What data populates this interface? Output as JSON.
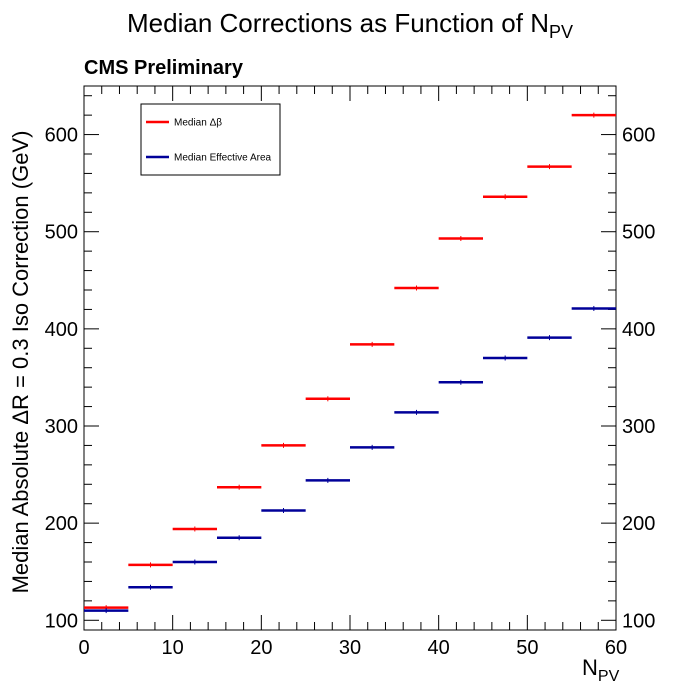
{
  "page": {
    "title_main": "Median Corrections as Function of N",
    "title_sub": "PV",
    "label": "CMS Preliminary"
  },
  "chart_data": {
    "type": "line",
    "title": "Median Corrections as Function of N_PV",
    "xlabel_main": "N",
    "xlabel_sub": "PV",
    "ylabel": "Median Absolute ΔR = 0.3 Iso Correction (GeV)",
    "xlim": [
      0,
      60
    ],
    "ylim": [
      90,
      650
    ],
    "xticks": [
      0,
      10,
      20,
      30,
      40,
      50,
      60
    ],
    "yticks": [
      100,
      200,
      300,
      400,
      500,
      600
    ],
    "grid": false,
    "legend_position": "top-left",
    "bin_edges": [
      0,
      5,
      10,
      15,
      20,
      25,
      30,
      35,
      40,
      45,
      50,
      55,
      60
    ],
    "series": [
      {
        "name": "Median Δβ",
        "color": "#ff0000",
        "values": [
          113,
          157,
          194,
          237,
          280,
          328,
          384,
          442,
          493,
          536,
          567,
          620
        ]
      },
      {
        "name": "Median Effective Area",
        "color": "#000099",
        "values": [
          110,
          134,
          160,
          185,
          213,
          244,
          278,
          314,
          345,
          370,
          391,
          421
        ]
      }
    ]
  }
}
